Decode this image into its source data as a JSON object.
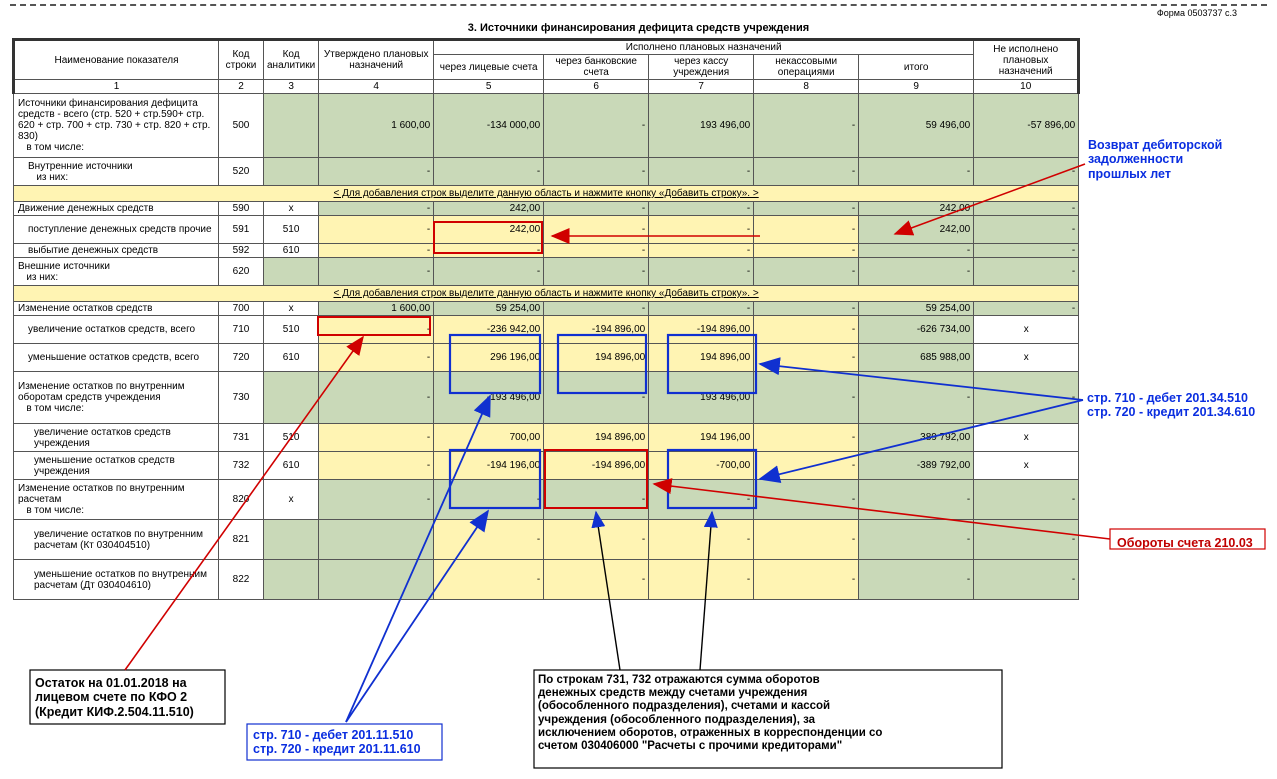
{
  "form_code": "Форма 0503737  с.3",
  "title": "3. Источники финансирования дефицита средств учреждения",
  "headers": {
    "c1": "Наименование показателя",
    "c2": "Код строки",
    "c3": "Код аналитики",
    "c4": "Утверждено плановых назначений",
    "grp": "Исполнено плановых назначений",
    "c5": "через лицевые счета",
    "c6": "через банковские счета",
    "c7": "через кассу учреждения",
    "c8": "некассовыми операциями",
    "c9": "итого",
    "c10": "Не исполнено плановых назначений",
    "n1": "1",
    "n2": "2",
    "n3": "3",
    "n4": "4",
    "n5": "5",
    "n6": "6",
    "n7": "7",
    "n8": "8",
    "n9": "9",
    "n10": "10"
  },
  "add_banner": "< Для добавления строк выделите данную область и нажмите кнопку «Добавить строку». >",
  "rows": {
    "r500": {
      "name": "Источники финансирования дефицита средств - всего (стр. 520 + стр.590+ стр. 620 + стр. 700 + стр. 730 + стр. 820 + стр. 830)\n   в том числе:",
      "code": "500",
      "anl": "",
      "c4": "1 600,00",
      "c5": "-134 000,00",
      "c7": "193 496,00",
      "c9": "59 496,00",
      "c10": "-57 896,00"
    },
    "r520": {
      "name": "Внутренние источники\n   из них:",
      "code": "520"
    },
    "r590": {
      "name": "Движение денежных средств",
      "code": "590",
      "anl": "х",
      "c5": "242,00",
      "c9": "242,00"
    },
    "r591": {
      "name": "поступление денежных средств прочие",
      "code": "591",
      "anl": "510",
      "c5": "242,00",
      "c9": "242,00"
    },
    "r592": {
      "name": "выбытие денежных средств",
      "code": "592",
      "anl": "610"
    },
    "r620": {
      "name": "Внешние источники\n   из них:",
      "code": "620"
    },
    "r700": {
      "name": "Изменение остатков средств",
      "code": "700",
      "anl": "х",
      "c4": "1 600,00",
      "c5": "59 254,00",
      "c9": "59 254,00"
    },
    "r710": {
      "name": "увеличение остатков средств, всего",
      "code": "710",
      "anl": "510",
      "c5": "-236 942,00",
      "c6": "-194 896,00",
      "c7": "-194 896,00",
      "c9": "-626 734,00",
      "c10": "х"
    },
    "r720": {
      "name": "уменьшение остатков средств, всего",
      "code": "720",
      "anl": "610",
      "c5": "296 196,00",
      "c6": "194 896,00",
      "c7": "194 896,00",
      "c9": "685 988,00",
      "c10": "х"
    },
    "r730": {
      "name": "Изменение остатков по внутренним оборотам средств учреждения\n   в том числе:",
      "code": "730",
      "c5": "-193 496,00",
      "c7": "193 496,00"
    },
    "r731": {
      "name": "увеличение остатков средств учреждения",
      "code": "731",
      "anl": "510",
      "c5": "700,00",
      "c6": "194 896,00",
      "c7": "194 196,00",
      "c9": "389 792,00",
      "c10": "х"
    },
    "r732": {
      "name": "уменьшение остатков средств учреждения",
      "code": "732",
      "anl": "610",
      "c5": "-194 196,00",
      "c6": "-194 896,00",
      "c7": "-700,00",
      "c9": "-389 792,00",
      "c10": "х"
    },
    "r820": {
      "name": "Изменение остатков по внутренним расчетам\n   в том числе:",
      "code": "820",
      "anl": "х"
    },
    "r821": {
      "name": "увеличение остатков по внутренним расчетам (Кт 030404510)",
      "code": "821"
    },
    "r822": {
      "name": "уменьшение остатков по внутренним расчетам (Дт 030404610)",
      "code": "822"
    }
  },
  "annotations": {
    "a1": "Возврат дебиторской\nзадолженности\nпрошлых лет",
    "a2": "стр. 710 - дебет 201.34.510\nстр. 720 - кредит 201.34.610",
    "a3": "Обороты счета 210.03",
    "a4": "Остаток на 01.01.2018 на\nлицевом счете по КФО 2\n(Кредит КИФ.2.504.11.510)",
    "a5": "стр. 710 - дебет 201.11.510\nстр. 720 - кредит 201.11.610",
    "a6": "По строкам 731, 732 отражаются сумма оборотов\nденежных средств между счетами учреждения\n(обособленного подразделения), счетами и кассой\nучреждения (обособленного подразделения), за\nисключением оборотов, отраженных в корреспонденции со\nсчетом 030406000 \"Расчеты с прочими кредиторами\""
  },
  "colors": {
    "green": "#c9d9b8",
    "yellow": "#fff4b3",
    "border": "#555555",
    "blue_box": "#1030d0",
    "red_box": "#d00000",
    "red_arrow": "#d00000",
    "blue_arrow": "#1030d0"
  }
}
